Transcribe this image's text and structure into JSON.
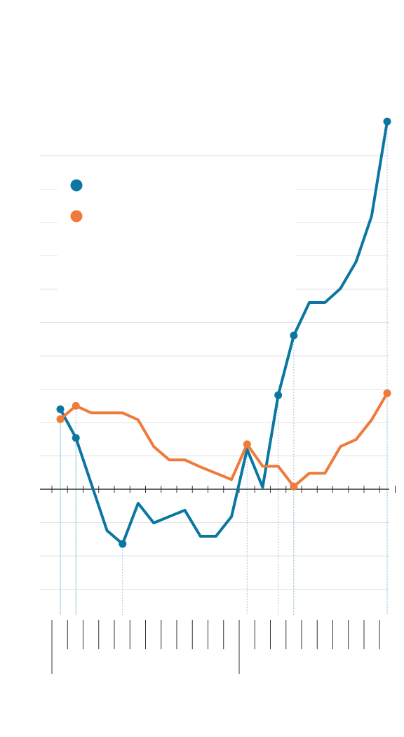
{
  "chart_data": {
    "type": "line",
    "categories": [
      null,
      null,
      null,
      null,
      null,
      null,
      null,
      null,
      null,
      null,
      null,
      null,
      null,
      null,
      null,
      null,
      null,
      null,
      null,
      null,
      null,
      null
    ],
    "series": [
      {
        "color": "#0b77a0",
        "markers": [
          0,
          1,
          4,
          14,
          15,
          21
        ],
        "values": [
          2.4,
          1.54,
          0.15,
          -1.24,
          -1.64,
          -0.42,
          -1.01,
          -0.82,
          -0.63,
          -1.41,
          -1.41,
          -0.82,
          1.2,
          0.06,
          2.82,
          4.61,
          5.6,
          5.6,
          6.02,
          6.82,
          8.19,
          11.03
        ]
      },
      {
        "color": "#ef7a3b",
        "markers": [
          0,
          1,
          12,
          15,
          21
        ],
        "values": [
          2.1,
          2.5,
          2.29,
          2.29,
          2.29,
          2.08,
          1.28,
          0.88,
          0.88,
          0.67,
          0.48,
          0.29,
          1.35,
          0.69,
          0.69,
          0.08,
          0.48,
          0.48,
          1.28,
          1.49,
          2.08,
          2.88
        ]
      }
    ],
    "ylim": [
      -3.77,
      11.1
    ],
    "yticks": [
      -3,
      -2,
      -1,
      0,
      1,
      2,
      3,
      4,
      5,
      6,
      7,
      8,
      9,
      10
    ],
    "grid": true
  }
}
